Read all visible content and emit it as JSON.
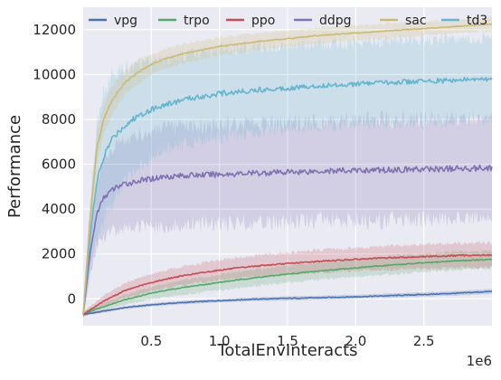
{
  "chart_data": {
    "type": "line",
    "title": "",
    "xlabel": "TotalEnvInteracts",
    "ylabel": "Performance",
    "x_offset_label": "1e6",
    "xlim": [
      0.0,
      3.0
    ],
    "ylim": [
      -1200,
      13000
    ],
    "x_ticks": [
      0.5,
      1.0,
      1.5,
      2.0,
      2.5
    ],
    "x_tick_labels": [
      "0.5",
      "1.0",
      "1.5",
      "2.0",
      "2.5"
    ],
    "y_ticks": [
      0,
      2000,
      4000,
      6000,
      8000,
      10000,
      12000
    ],
    "y_tick_labels": [
      "0",
      "2000",
      "4000",
      "6000",
      "8000",
      "10000",
      "12000"
    ],
    "grid": true,
    "background_color": "#eaeaf2",
    "legend_position": "top",
    "x": [
      0.0,
      0.05,
      0.1,
      0.15,
      0.2,
      0.25,
      0.3,
      0.4,
      0.5,
      0.6,
      0.75,
      1.0,
      1.25,
      1.5,
      1.75,
      2.0,
      2.25,
      2.5,
      2.75,
      3.0
    ],
    "series": [
      {
        "name": "vpg",
        "color": "#4c72b0",
        "values": [
          -700,
          -650,
          -600,
          -550,
          -500,
          -450,
          -400,
          -330,
          -270,
          -220,
          -160,
          -80,
          -20,
          20,
          50,
          90,
          140,
          190,
          250,
          330
        ],
        "band": [
          60,
          60,
          60,
          60,
          60,
          60,
          60,
          70,
          70,
          70,
          80,
          80,
          80,
          90,
          90,
          90,
          100,
          100,
          100,
          110
        ]
      },
      {
        "name": "trpo",
        "color": "#55a868",
        "values": [
          -700,
          -550,
          -450,
          -350,
          -250,
          -150,
          -50,
          100,
          250,
          370,
          520,
          730,
          930,
          1100,
          1250,
          1380,
          1500,
          1600,
          1700,
          1750
        ],
        "band": [
          100,
          120,
          140,
          160,
          180,
          200,
          220,
          250,
          280,
          300,
          320,
          350,
          370,
          380,
          390,
          400,
          400,
          400,
          400,
          400
        ]
      },
      {
        "name": "ppo",
        "color": "#c44e52",
        "values": [
          -700,
          -500,
          -300,
          -100,
          50,
          200,
          350,
          550,
          720,
          870,
          1050,
          1280,
          1450,
          1570,
          1680,
          1760,
          1830,
          1880,
          1930,
          1950
        ],
        "band": [
          120,
          150,
          200,
          250,
          280,
          300,
          320,
          350,
          380,
          400,
          420,
          450,
          470,
          480,
          500,
          510,
          520,
          530,
          540,
          550
        ]
      },
      {
        "name": "ddpg",
        "color": "#8172b2",
        "values": [
          -700,
          2000,
          3800,
          4500,
          4800,
          5000,
          5100,
          5250,
          5350,
          5450,
          5500,
          5550,
          5600,
          5650,
          5700,
          5720,
          5750,
          5780,
          5800,
          5850
        ],
        "band": [
          200,
          1000,
          1500,
          1700,
          1800,
          1900,
          2000,
          2050,
          2100,
          2150,
          2150,
          2200,
          2200,
          2200,
          2200,
          2250,
          2250,
          2250,
          2250,
          2250
        ]
      },
      {
        "name": "sac",
        "color": "#ccb974",
        "values": [
          -700,
          3500,
          6700,
          8000,
          8700,
          9200,
          9600,
          10100,
          10450,
          10700,
          10950,
          11250,
          11450,
          11600,
          11750,
          11850,
          11950,
          12050,
          12150,
          12250
        ],
        "band": [
          200,
          500,
          700,
          700,
          650,
          600,
          550,
          500,
          480,
          450,
          420,
          400,
          380,
          360,
          350,
          340,
          330,
          320,
          310,
          300
        ]
      },
      {
        "name": "td3",
        "color": "#64b5cd",
        "values": [
          -700,
          2800,
          5200,
          6300,
          7000,
          7400,
          7700,
          8150,
          8450,
          8650,
          8900,
          9150,
          9300,
          9400,
          9500,
          9580,
          9650,
          9700,
          9750,
          9800
        ],
        "band": [
          300,
          1500,
          2500,
          2800,
          2900,
          2700,
          2500,
          2300,
          2200,
          2100,
          2000,
          1950,
          1900,
          1850,
          1850,
          1850,
          1850,
          1850,
          1850,
          1850
        ]
      }
    ]
  }
}
